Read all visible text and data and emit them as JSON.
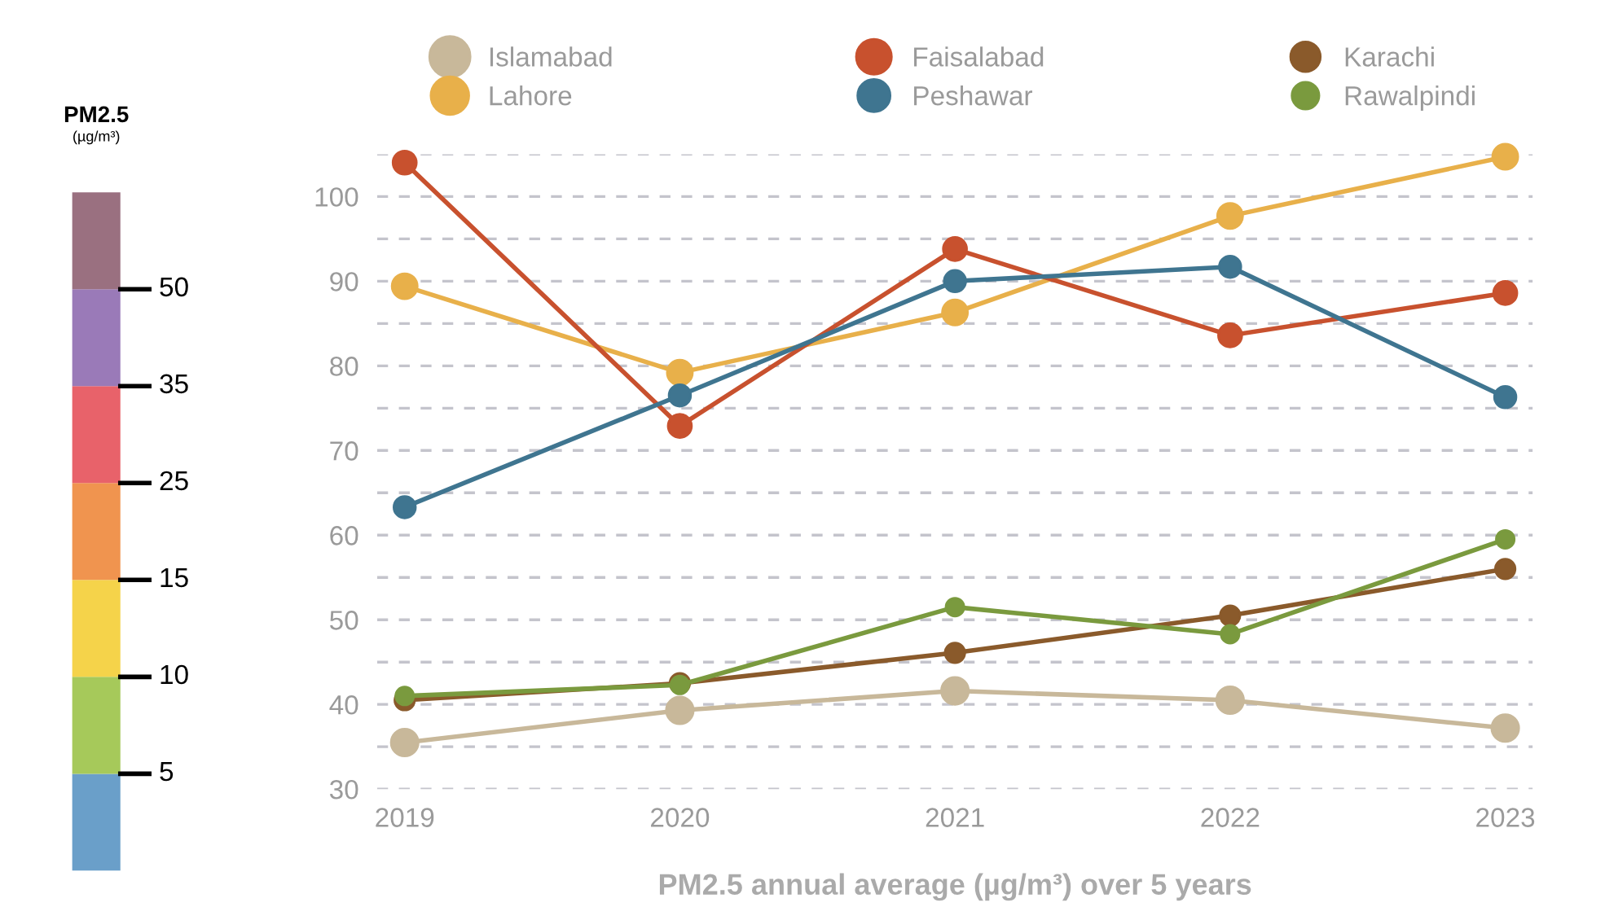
{
  "chart_data": [
    {
      "type": "line",
      "xlabel": "PM2.5 annual average (µg/m³) over 5 years",
      "categories": [
        "2019",
        "2020",
        "2021",
        "2022",
        "2023"
      ],
      "series": [
        {
          "name": "Islamabad",
          "color": "#c8b89a",
          "values": [
            35.5,
            39.3,
            41.6,
            40.5,
            37.2
          ]
        },
        {
          "name": "Lahore",
          "color": "#e8b04a",
          "values": [
            89.4,
            79.2,
            86.3,
            97.7,
            104.7
          ]
        },
        {
          "name": "Faisalabad",
          "color": "#c8512e",
          "values": [
            104,
            72.9,
            93.8,
            83.6,
            88.6
          ]
        },
        {
          "name": "Peshawar",
          "color": "#3f7590",
          "values": [
            63.3,
            76.5,
            90,
            91.7,
            76.3
          ]
        },
        {
          "name": "Karachi",
          "color": "#8a5a2b",
          "values": [
            40.5,
            42.5,
            46.1,
            50.5,
            56
          ]
        },
        {
          "name": "Rawalpindi",
          "color": "#7a9a3e",
          "values": [
            41,
            42.3,
            51.5,
            48.3,
            59.5
          ]
        }
      ],
      "ylim": [
        30,
        105
      ],
      "yticks": [
        30,
        {
          "value": 35,
          "label": null
        },
        40,
        {
          "value": 45,
          "label": null
        },
        50,
        {
          "value": 55,
          "label": null
        },
        60,
        {
          "value": 65,
          "label": null
        },
        70,
        {
          "value": 75,
          "label": null
        },
        80,
        {
          "value": 85,
          "label": null
        },
        90,
        {
          "value": 95,
          "label": null
        },
        100,
        {
          "value": 105,
          "label": null
        }
      ],
      "grid": "y",
      "legend": "top",
      "marker": "circle",
      "line_style": "solid"
    },
    {
      "type": "other",
      "title": "PM2.5",
      "subtitle": "(µg/m³)",
      "annotations": [
        "5",
        "10",
        "15",
        "25",
        "35",
        "50"
      ],
      "colors": [
        "#6a9fc9",
        "#a6c95a",
        "#f5d34a",
        "#f0944f",
        "#e8626a",
        "#9a7ab8",
        "#9a7080"
      ]
    }
  ]
}
